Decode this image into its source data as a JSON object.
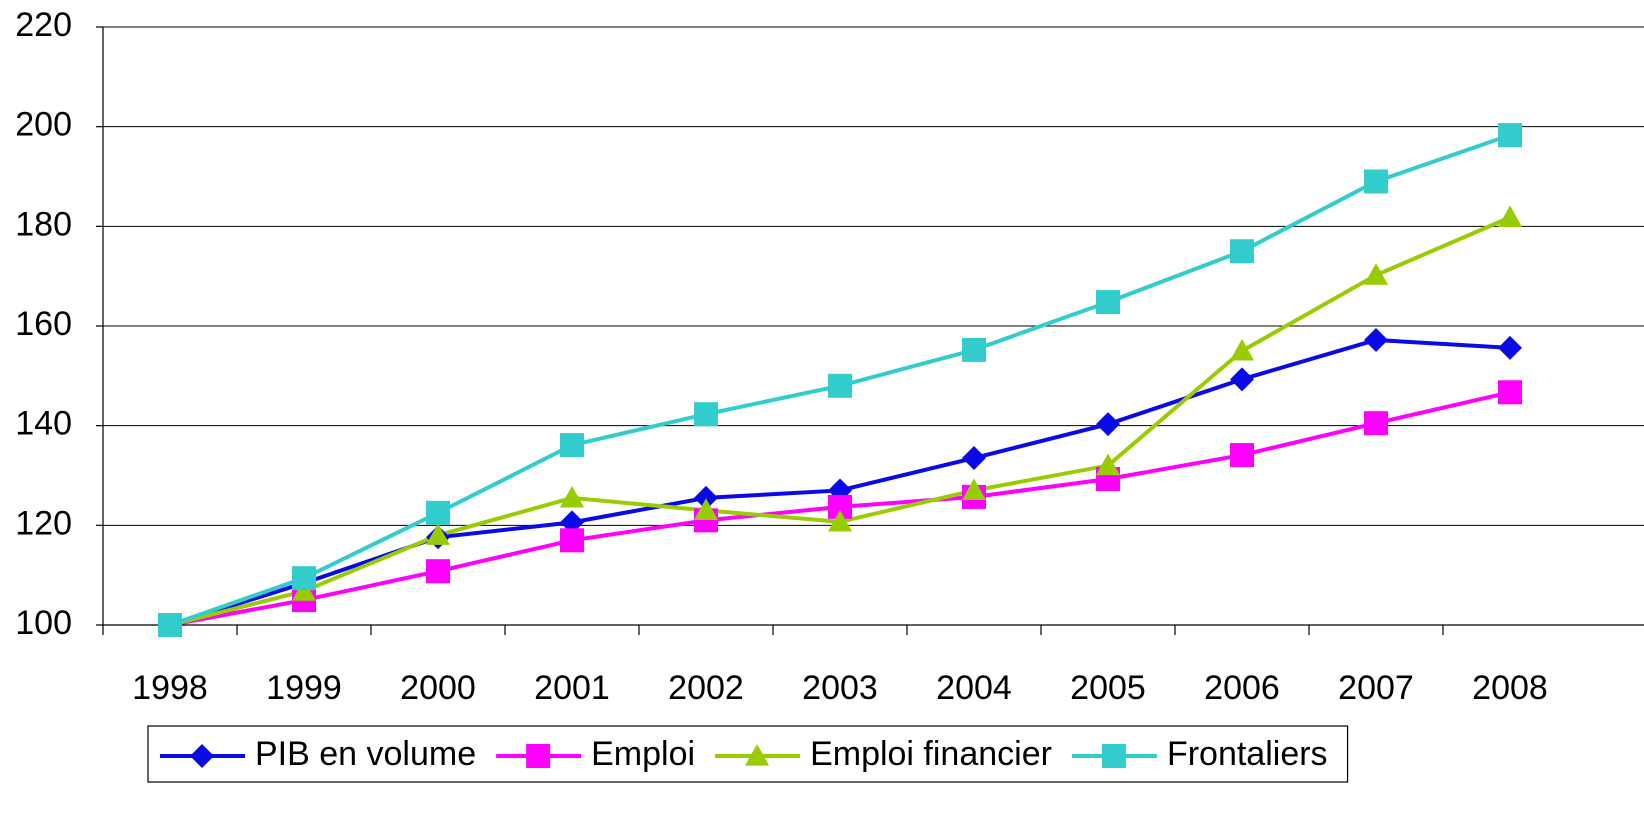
{
  "chart_data": {
    "type": "line",
    "categories": [
      "1998",
      "1999",
      "2000",
      "2001",
      "2002",
      "2003",
      "2004",
      "2005",
      "2006",
      "2007",
      "2008"
    ],
    "series": [
      {
        "name": "PIB en volume",
        "color": "#0a0ae6",
        "marker": "diamond",
        "values": [
          100,
          108.4,
          117.6,
          120.6,
          125.5,
          127,
          133.5,
          140.3,
          149.3,
          157.2,
          155.6
        ]
      },
      {
        "name": "Emploi",
        "color": "#ff00ff",
        "marker": "square",
        "values": [
          100,
          105,
          110.8,
          117,
          121,
          123.7,
          125.7,
          129.3,
          134.1,
          140.5,
          146.7
        ]
      },
      {
        "name": "Emploi financier",
        "color": "#99cc00",
        "marker": "triangle",
        "values": [
          100,
          106.8,
          118,
          125.5,
          123,
          120.7,
          127,
          132,
          155,
          170.2,
          181.8
        ]
      },
      {
        "name": "Frontaliers",
        "color": "#33cccc",
        "marker": "square",
        "values": [
          100,
          109.4,
          122.5,
          136.1,
          142.3,
          148,
          155.2,
          164.8,
          175,
          189,
          198.3
        ]
      }
    ],
    "ylim": [
      100,
      220
    ],
    "yticks": [
      100,
      120,
      140,
      160,
      180,
      200,
      220
    ],
    "grid": true,
    "legend": "bottom"
  }
}
